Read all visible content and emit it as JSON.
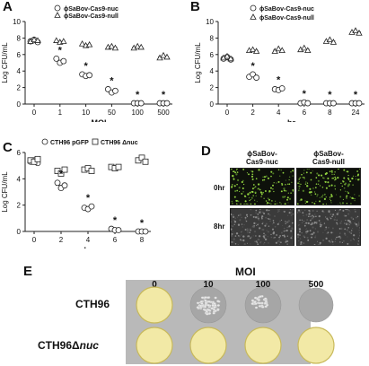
{
  "panels": {
    "A": {
      "label": "A"
    },
    "B": {
      "label": "B"
    },
    "C": {
      "label": "C"
    },
    "D": {
      "label": "D",
      "col_headers": [
        "ϕSaBov-\nCas9-nuc",
        "ϕSaBov-\nCas9-null"
      ],
      "row_labels": [
        "0hr",
        "8hr"
      ]
    },
    "E": {
      "label": "E",
      "moi_title": "MOI",
      "moi_values": [
        "0",
        "10",
        "100",
        "500"
      ],
      "strains": [
        "CTH96",
        "CTH96Δnuc"
      ]
    }
  },
  "chart_data": [
    {
      "panel": "A",
      "type": "scatter",
      "xlabel": "MOI",
      "ylabel": "Log CFU/mL",
      "categories": [
        "0",
        "1",
        "10",
        "50",
        "100",
        "500"
      ],
      "ylim": [
        0,
        10
      ],
      "yticks": [
        0,
        2,
        4,
        6,
        8,
        10
      ],
      "series": [
        {
          "name": "ϕSaBov-Cas9-nuc",
          "marker": "circle",
          "values": [
            [
              7.6,
              7.8,
              7.5
            ],
            [
              5.5,
              5.0,
              5.2
            ],
            [
              3.6,
              3.4,
              3.5
            ],
            [
              1.8,
              1.4,
              1.6
            ],
            [
              0.1,
              0.1,
              0.1
            ],
            [
              0.1,
              0.1,
              0.1
            ]
          ]
        },
        {
          "name": "ϕSaBov-Cas9-null",
          "marker": "triangle",
          "values": [
            [
              7.6,
              7.8,
              7.7
            ],
            [
              7.7,
              7.5,
              7.6
            ],
            [
              7.3,
              7.1,
              7.2
            ],
            [
              6.9,
              7.0,
              6.8
            ],
            [
              6.8,
              7.0,
              6.9
            ],
            [
              5.6,
              5.9,
              5.7
            ]
          ]
        }
      ],
      "significance": [
        "",
        "*",
        "*",
        "*",
        "*",
        "*"
      ]
    },
    {
      "panel": "B",
      "type": "scatter",
      "xlabel": "hr",
      "ylabel": "Log CFU/mL",
      "categories": [
        "0",
        "2",
        "4",
        "6",
        "8",
        "24"
      ],
      "ylim": [
        0,
        10
      ],
      "yticks": [
        0,
        2,
        4,
        6,
        8,
        10
      ],
      "series": [
        {
          "name": "ϕSaBov-Cas9-nuc",
          "marker": "circle",
          "values": [
            [
              5.5,
              5.7,
              5.4
            ],
            [
              3.3,
              3.6,
              3.2
            ],
            [
              1.8,
              1.7,
              1.9
            ],
            [
              0.1,
              0.2,
              0.1
            ],
            [
              0.1,
              0.1,
              0.1
            ],
            [
              0.1,
              0.1,
              0.1
            ]
          ]
        },
        {
          "name": "ϕSaBov-Cas9-null",
          "marker": "triangle",
          "values": [
            [
              5.6,
              5.8,
              5.5
            ],
            [
              6.5,
              6.6,
              6.4
            ],
            [
              6.4,
              6.7,
              6.5
            ],
            [
              6.6,
              6.8,
              6.5
            ],
            [
              7.6,
              7.8,
              7.5
            ],
            [
              8.7,
              8.9,
              8.6
            ]
          ]
        }
      ],
      "significance": [
        "",
        "*",
        "*",
        "*",
        "*",
        "*"
      ]
    },
    {
      "panel": "C",
      "type": "scatter",
      "xlabel": "hr",
      "ylabel": "Log CFU/mL",
      "categories": [
        "0",
        "2",
        "4",
        "6",
        "8"
      ],
      "ylim": [
        0,
        6
      ],
      "yticks": [
        0,
        2,
        4,
        6
      ],
      "series": [
        {
          "name": "CTH96 pGFP",
          "marker": "circle",
          "values": [
            [
              5.3,
              5.4,
              5.2
            ],
            [
              3.7,
              3.3,
              3.5
            ],
            [
              1.8,
              1.7,
              1.9
            ],
            [
              0.2,
              0.1,
              0.1
            ],
            [
              0.0,
              0.0,
              0.0
            ]
          ]
        },
        {
          "name": "CTH96 Δnuc",
          "marker": "square",
          "values": [
            [
              5.4,
              5.3,
              5.5
            ],
            [
              4.6,
              4.4,
              4.7
            ],
            [
              4.7,
              4.8,
              4.6
            ],
            [
              4.9,
              4.8,
              4.9
            ],
            [
              5.4,
              5.6,
              5.3
            ]
          ]
        }
      ],
      "significance": [
        "",
        "*",
        "*",
        "*",
        "*"
      ]
    }
  ],
  "colors": {
    "plate_fill": "#f2e9a6",
    "plate_edge": "#c8b95a",
    "plate_bg": "#b9b9b9",
    "colony": "#e8e8e8",
    "micro_bg": "#1a1a1a",
    "micro_dots": "#7fb33a"
  }
}
